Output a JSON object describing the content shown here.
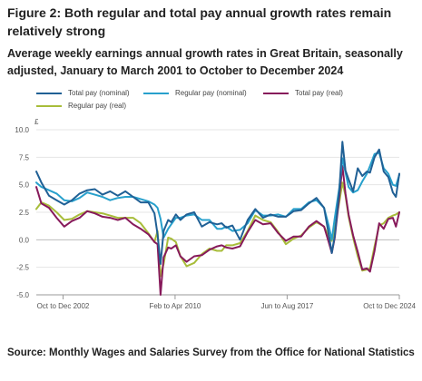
{
  "figure": {
    "title": "Figure 2: Both regular and total pay annual growth rates remain relatively strong",
    "subtitle": "Average weekly earnings annual growth rates in Great Britain, seasonally adjusted, January to March 2001 to October to December 2024",
    "source": "Source: Monthly Wages and Salaries Survey from the Office for National Statistics"
  },
  "chart_data": {
    "type": "line",
    "title": "",
    "xlabel": "",
    "ylabel": "£",
    "ylim": [
      -5.0,
      10.0
    ],
    "yticks": [
      "10.0",
      "7.5",
      "5.0",
      "2.5",
      "0.0",
      "-2.5",
      "-5.0"
    ],
    "xticks": [
      "Oct to Dec 2002",
      "Feb to Apr 2010",
      "Jun to Aug 2017",
      "Oct to Dec 2024"
    ],
    "grid": true,
    "legend_position": "top",
    "x_start_year": 2001.17,
    "x_end_year": 2024.92,
    "series": [
      {
        "name": "Total pay (nominal)",
        "color": "#206095",
        "x": [
          2001.17,
          2001.5,
          2002.0,
          2002.5,
          2003.0,
          2003.5,
          2004.0,
          2004.5,
          2005.0,
          2005.5,
          2006.0,
          2006.5,
          2007.0,
          2007.5,
          2008.0,
          2008.5,
          2008.9,
          2009.1,
          2009.3,
          2009.5,
          2009.8,
          2010.0,
          2010.3,
          2010.6,
          2011.0,
          2011.5,
          2012.0,
          2012.5,
          2013.0,
          2013.3,
          2013.6,
          2014.0,
          2014.5,
          2015.0,
          2015.5,
          2016.0,
          2016.5,
          2017.0,
          2017.5,
          2018.0,
          2018.5,
          2019.0,
          2019.5,
          2020.0,
          2020.3,
          2020.5,
          2020.7,
          2021.0,
          2021.2,
          2021.4,
          2021.6,
          2021.9,
          2022.2,
          2022.5,
          2022.8,
          2023.0,
          2023.3,
          2023.6,
          2023.9,
          2024.2,
          2024.5,
          2024.7,
          2024.92
        ],
        "values": [
          6.2,
          5.2,
          4.0,
          3.6,
          3.2,
          3.6,
          4.2,
          4.5,
          4.6,
          4.1,
          4.4,
          4.0,
          4.4,
          3.9,
          3.4,
          3.4,
          2.4,
          0.5,
          -2.2,
          0.8,
          1.8,
          1.6,
          2.3,
          1.8,
          2.3,
          2.5,
          1.2,
          1.6,
          1.4,
          1.5,
          1.1,
          1.3,
          0.0,
          1.8,
          2.8,
          2.0,
          2.3,
          2.1,
          2.1,
          2.6,
          2.7,
          3.3,
          3.8,
          2.9,
          0.5,
          -1.2,
          0.4,
          4.6,
          8.9,
          6.3,
          5.5,
          4.4,
          6.5,
          5.8,
          6.2,
          6.1,
          7.5,
          8.2,
          6.2,
          5.7,
          4.3,
          3.9,
          6.0
        ]
      },
      {
        "name": "Regular pay (nominal)",
        "color": "#27a0cc",
        "x": [
          2001.17,
          2001.5,
          2002.0,
          2002.5,
          2003.0,
          2003.5,
          2004.0,
          2004.5,
          2005.0,
          2005.5,
          2006.0,
          2006.5,
          2007.0,
          2007.5,
          2008.0,
          2008.5,
          2008.9,
          2009.1,
          2009.3,
          2009.5,
          2009.8,
          2010.0,
          2010.3,
          2010.6,
          2011.0,
          2011.5,
          2012.0,
          2012.5,
          2013.0,
          2013.3,
          2013.6,
          2014.0,
          2014.5,
          2015.0,
          2015.5,
          2016.0,
          2016.5,
          2017.0,
          2017.5,
          2018.0,
          2018.5,
          2019.0,
          2019.5,
          2020.0,
          2020.3,
          2020.5,
          2020.7,
          2021.0,
          2021.2,
          2021.4,
          2021.6,
          2021.9,
          2022.2,
          2022.5,
          2022.8,
          2023.0,
          2023.3,
          2023.6,
          2023.9,
          2024.2,
          2024.5,
          2024.7,
          2024.92
        ],
        "values": [
          5.2,
          4.8,
          4.5,
          4.2,
          3.6,
          3.5,
          3.8,
          4.3,
          4.1,
          3.9,
          3.6,
          3.8,
          3.9,
          3.9,
          3.7,
          3.5,
          3.2,
          2.9,
          1.9,
          0.2,
          1.0,
          1.4,
          2.0,
          2.0,
          2.2,
          2.3,
          1.8,
          1.8,
          1.0,
          1.0,
          1.2,
          0.8,
          0.9,
          1.5,
          2.7,
          2.2,
          2.2,
          2.3,
          2.1,
          2.8,
          2.8,
          3.4,
          3.6,
          2.9,
          1.3,
          0.0,
          2.0,
          4.8,
          7.4,
          6.1,
          4.8,
          4.3,
          4.5,
          5.3,
          6.0,
          6.7,
          7.8,
          7.9,
          6.5,
          6.0,
          5.0,
          4.9,
          5.9
        ]
      },
      {
        "name": "Total pay (real)",
        "color": "#871a5b",
        "x": [
          2001.17,
          2001.5,
          2002.0,
          2002.5,
          2003.0,
          2003.5,
          2004.0,
          2004.5,
          2005.0,
          2005.5,
          2006.0,
          2006.5,
          2007.0,
          2007.5,
          2008.0,
          2008.5,
          2008.9,
          2009.1,
          2009.3,
          2009.5,
          2009.8,
          2010.0,
          2010.3,
          2010.6,
          2011.0,
          2011.5,
          2012.0,
          2012.5,
          2013.0,
          2013.3,
          2013.6,
          2014.0,
          2014.5,
          2015.0,
          2015.5,
          2016.0,
          2016.5,
          2017.0,
          2017.5,
          2018.0,
          2018.5,
          2019.0,
          2019.5,
          2020.0,
          2020.3,
          2020.5,
          2020.7,
          2021.0,
          2021.2,
          2021.4,
          2021.6,
          2021.9,
          2022.2,
          2022.5,
          2022.8,
          2023.0,
          2023.3,
          2023.6,
          2023.9,
          2024.2,
          2024.5,
          2024.7,
          2024.92
        ],
        "values": [
          4.8,
          3.3,
          2.9,
          2.0,
          1.2,
          1.7,
          2.0,
          2.6,
          2.4,
          2.1,
          2.0,
          1.8,
          2.0,
          1.4,
          1.0,
          0.5,
          -0.2,
          -0.4,
          -5.0,
          -1.6,
          -0.7,
          -0.8,
          -0.5,
          -1.5,
          -2.0,
          -1.5,
          -1.4,
          -0.9,
          -0.6,
          -0.5,
          -0.7,
          -0.8,
          -0.6,
          0.7,
          1.8,
          1.4,
          1.5,
          0.6,
          -0.1,
          0.3,
          0.3,
          1.2,
          1.7,
          1.2,
          -0.2,
          -1.2,
          0.2,
          4.0,
          6.7,
          4.2,
          2.3,
          0.4,
          -1.1,
          -2.7,
          -2.6,
          -2.9,
          -1.0,
          1.5,
          1.0,
          1.9,
          2.0,
          1.2,
          2.5
        ]
      },
      {
        "name": "Regular pay (real)",
        "color": "#a8bd3a",
        "x": [
          2001.17,
          2001.5,
          2002.0,
          2002.5,
          2003.0,
          2003.5,
          2004.0,
          2004.5,
          2005.0,
          2005.5,
          2006.0,
          2006.5,
          2007.0,
          2007.5,
          2008.0,
          2008.5,
          2008.9,
          2009.1,
          2009.3,
          2009.5,
          2009.8,
          2010.0,
          2010.3,
          2010.6,
          2011.0,
          2011.5,
          2012.0,
          2012.5,
          2013.0,
          2013.3,
          2013.6,
          2014.0,
          2014.5,
          2015.0,
          2015.5,
          2016.0,
          2016.5,
          2017.0,
          2017.5,
          2018.0,
          2018.5,
          2019.0,
          2019.5,
          2020.0,
          2020.3,
          2020.5,
          2020.7,
          2021.0,
          2021.2,
          2021.4,
          2021.6,
          2021.9,
          2022.2,
          2022.5,
          2022.8,
          2023.0,
          2023.3,
          2023.6,
          2023.9,
          2024.2,
          2024.5,
          2024.7,
          2024.92
        ],
        "values": [
          2.8,
          3.4,
          3.1,
          2.5,
          1.8,
          1.9,
          2.3,
          2.6,
          2.5,
          2.4,
          2.2,
          2.0,
          2.0,
          2.0,
          1.5,
          0.6,
          -0.2,
          0.8,
          -3.3,
          -2.2,
          0.2,
          0.1,
          -0.2,
          -1.5,
          -2.4,
          -2.1,
          -1.3,
          -0.8,
          -1.0,
          -1.0,
          -0.5,
          -0.5,
          -0.3,
          0.8,
          2.2,
          1.8,
          1.6,
          0.7,
          -0.4,
          0.1,
          0.4,
          1.1,
          1.6,
          1.2,
          0.3,
          -0.1,
          1.0,
          3.5,
          5.2,
          4.0,
          2.1,
          0.2,
          -1.5,
          -2.8,
          -2.7,
          -2.6,
          -0.6,
          1.3,
          1.5,
          2.0,
          2.2,
          2.3,
          2.5
        ]
      }
    ]
  }
}
